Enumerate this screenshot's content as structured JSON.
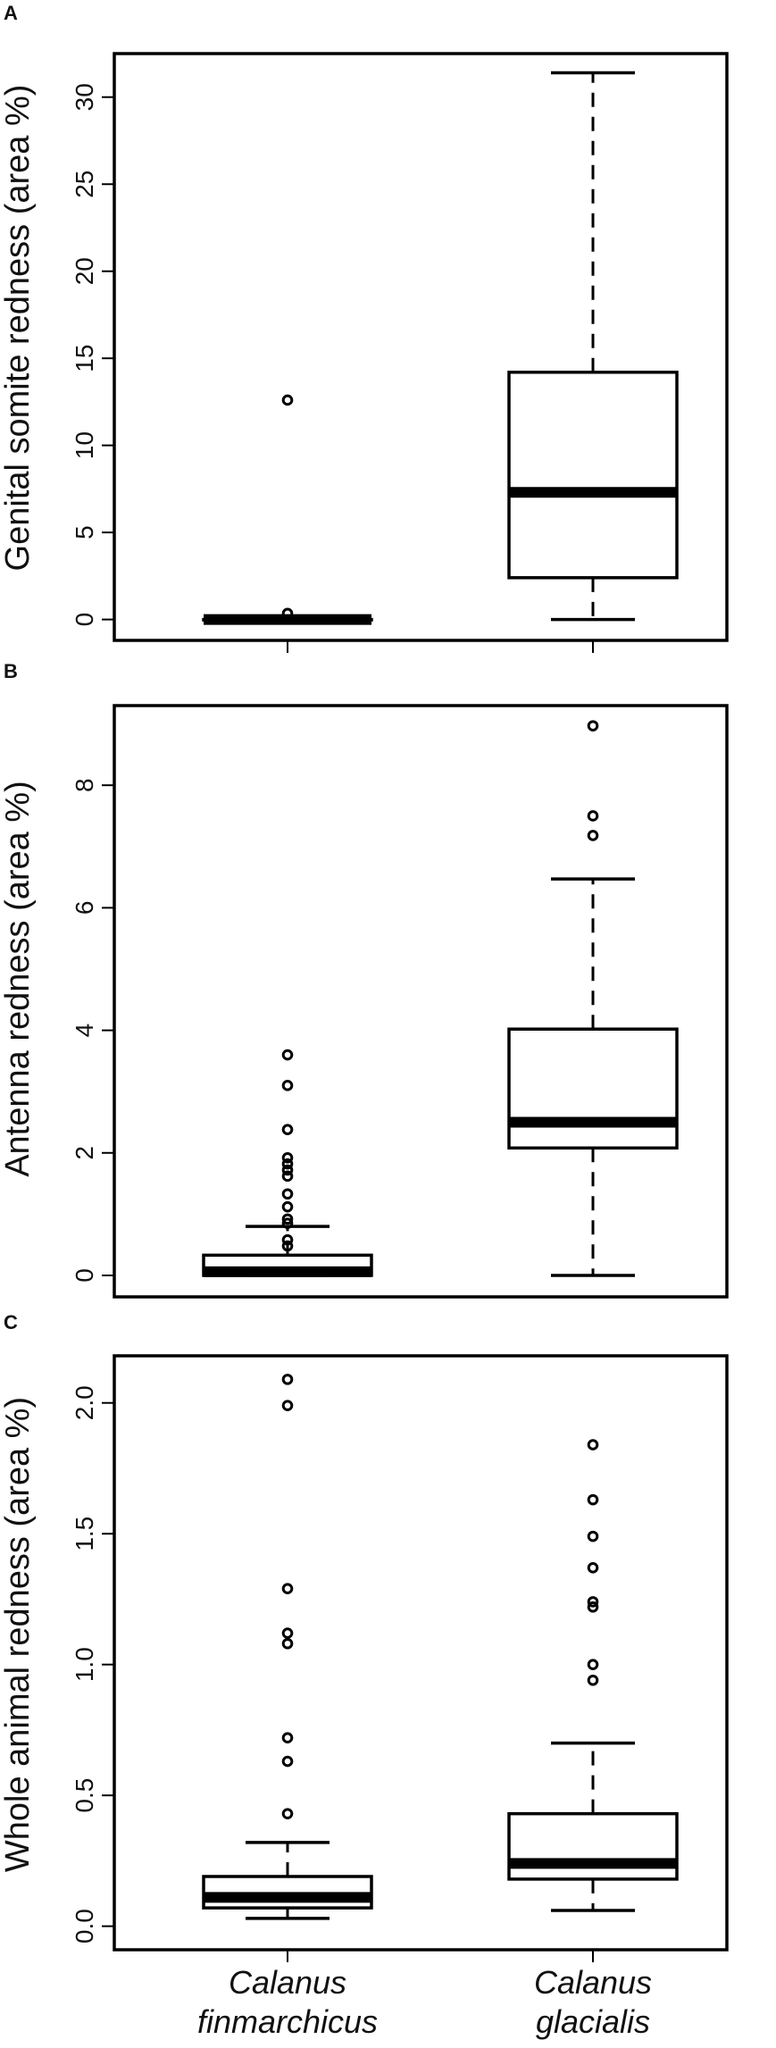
{
  "figure": {
    "categories": [
      [
        "Calanus",
        "finmarchicus"
      ],
      [
        "Calanus",
        "glacialis"
      ]
    ]
  },
  "chart_data": [
    {
      "type": "boxplot",
      "panel_label": "A",
      "ylabel": "Genital somite redness (area %)",
      "ylim": [
        -1.2,
        32.5
      ],
      "yticks": [
        0,
        5,
        10,
        15,
        20,
        25,
        30
      ],
      "categories": [
        "Calanus finmarchicus",
        "Calanus glacialis"
      ],
      "boxes": [
        {
          "whisker_low": 0,
          "q1": 0,
          "median": 0,
          "q3": 0,
          "whisker_high": 0,
          "outliers": [
            0.35,
            12.6
          ]
        },
        {
          "whisker_low": 0,
          "q1": 2.4,
          "median": 7.3,
          "q3": 14.2,
          "whisker_high": 31.4,
          "outliers": []
        }
      ]
    },
    {
      "type": "boxplot",
      "panel_label": "B",
      "ylabel": "Antenna redness (area %)",
      "ylim": [
        -0.35,
        9.3
      ],
      "yticks": [
        0,
        2,
        4,
        6,
        8
      ],
      "categories": [
        "Calanus finmarchicus",
        "Calanus glacialis"
      ],
      "boxes": [
        {
          "whisker_low": 0,
          "q1": 0,
          "median": 0.06,
          "q3": 0.33,
          "whisker_high": 0.8,
          "outliers": [
            0.48,
            0.58,
            0.85,
            0.92,
            1.12,
            1.33,
            1.62,
            1.72,
            1.82,
            1.92,
            2.38,
            3.1,
            3.6
          ]
        },
        {
          "whisker_low": 0,
          "q1": 2.08,
          "median": 2.5,
          "q3": 4.02,
          "whisker_high": 6.47,
          "outliers": [
            7.18,
            7.5,
            8.97
          ]
        }
      ]
    },
    {
      "type": "boxplot",
      "panel_label": "C",
      "ylabel": "Whole animal redness (area %)",
      "ylim": [
        -0.09,
        2.18
      ],
      "yticks": [
        0.0,
        0.5,
        1.0,
        1.5,
        2.0
      ],
      "ytick_labels": [
        "0.0",
        "0.5",
        "1.0",
        "1.5",
        "2.0"
      ],
      "categories": [
        "Calanus finmarchicus",
        "Calanus glacialis"
      ],
      "boxes": [
        {
          "whisker_low": 0.03,
          "q1": 0.07,
          "median": 0.11,
          "q3": 0.19,
          "whisker_high": 0.32,
          "outliers": [
            0.43,
            0.63,
            0.72,
            1.08,
            1.12,
            1.29,
            1.99,
            2.09
          ]
        },
        {
          "whisker_low": 0.06,
          "q1": 0.18,
          "median": 0.24,
          "q3": 0.43,
          "whisker_high": 0.7,
          "outliers": [
            0.94,
            1.0,
            1.22,
            1.24,
            1.37,
            1.49,
            1.63,
            1.84
          ]
        }
      ]
    }
  ]
}
